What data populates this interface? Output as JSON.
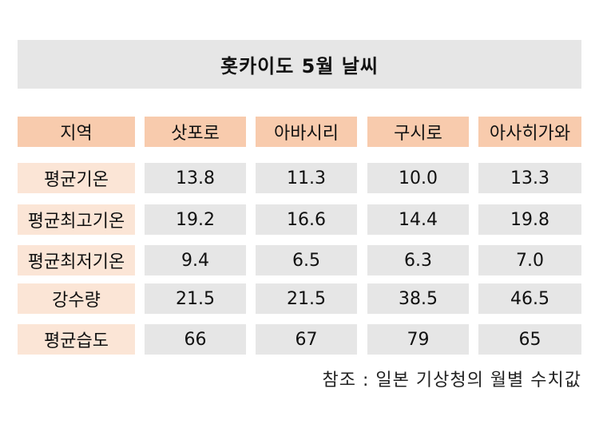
{
  "title": "홋카이도 5월 날씨",
  "table": {
    "headers": [
      "지역",
      "삿포로",
      "아바시리",
      "구시로",
      "아사히가와"
    ],
    "rows": [
      {
        "label": "평균기온",
        "values": [
          "13.8",
          "11.3",
          "10.0",
          "13.3"
        ]
      },
      {
        "label": "평균최고기온",
        "values": [
          "19.2",
          "16.6",
          "14.4",
          "19.8"
        ]
      },
      {
        "label": "평균최저기온",
        "values": [
          "9.4",
          "6.5",
          "6.3",
          "7.0"
        ]
      },
      {
        "label": "강수량",
        "values": [
          "21.5",
          "21.5",
          "38.5",
          "46.5"
        ]
      },
      {
        "label": "평균습도",
        "values": [
          "66",
          "67",
          "79",
          "65"
        ]
      }
    ]
  },
  "note": "참조 : 일본 기상청의 월별 수치값",
  "colors": {
    "header_bg": "#f8cbad",
    "row_label_bg": "#fbe5d6",
    "value_bg": "#e6e6e6",
    "title_bg": "#e6e6e6"
  }
}
